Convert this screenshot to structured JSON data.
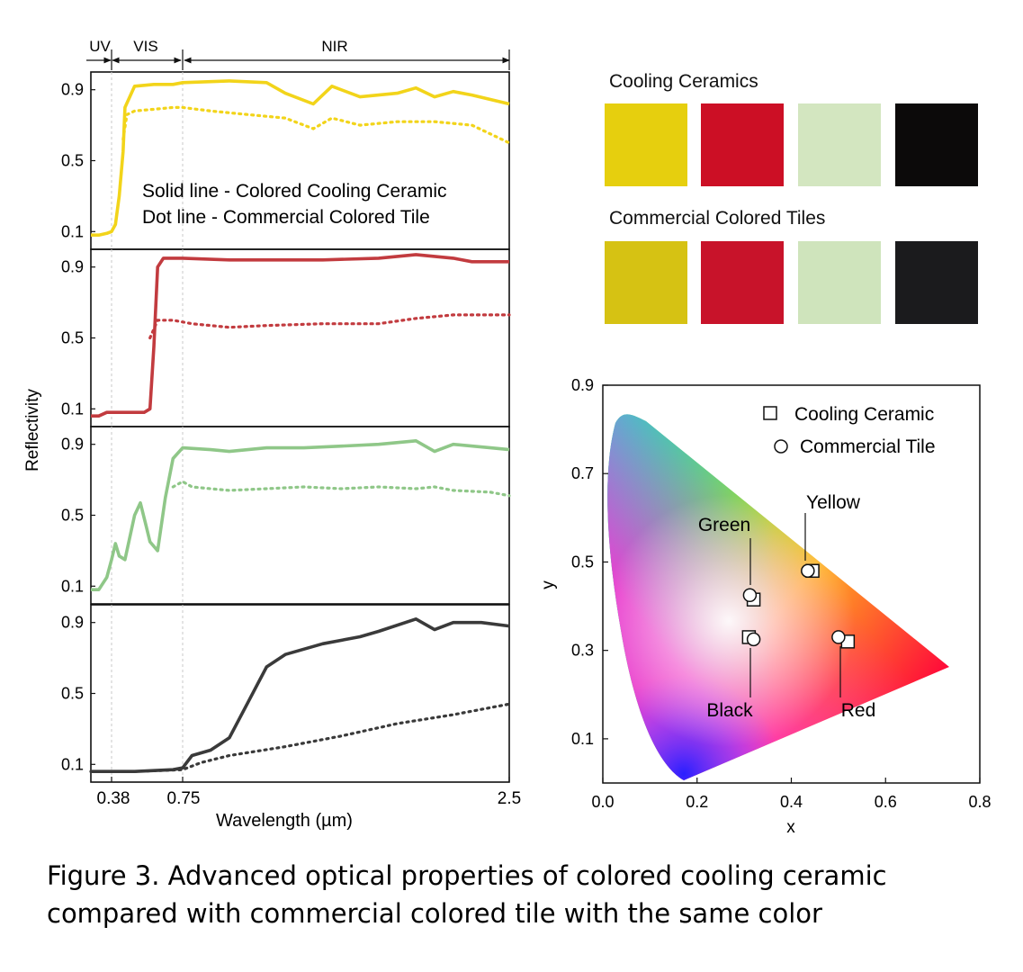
{
  "reflectance": {
    "region_labels": [
      "UV",
      "VIS",
      "NIR"
    ],
    "ylabel": "Reflectivity",
    "xlabel": "Wavelength (µm)",
    "xticks": [
      "0.38",
      "0.75",
      "2.5"
    ],
    "yticks": [
      "0.9",
      "0.5",
      "0.1"
    ],
    "legend": [
      "Solid line  - Colored Cooling Ceramic",
      "Dot line  - Commercial Colored Tile"
    ]
  },
  "swatches": {
    "cooling_title": "Cooling Ceramics",
    "commercial_title": "Commercial Colored Tiles",
    "cooling_colors": [
      "#e6cf0e",
      "#cc0f25",
      "#d3e6c0",
      "#0c0a0a"
    ],
    "commercial_colors": [
      "#d6c213",
      "#c8132a",
      "#cfe4bc",
      "#1b1b1d"
    ]
  },
  "chart_data": [
    {
      "type": "line",
      "panel": "yellow",
      "color": "#f2d41a",
      "xlim": [
        0.25,
        2.5
      ],
      "ylim": [
        0.0,
        1.0
      ],
      "series": [
        {
          "x": [
            0.25,
            0.3,
            0.35,
            0.38,
            0.4,
            0.42,
            0.44,
            0.45,
            0.5,
            0.6,
            0.7,
            0.75,
            1.0,
            1.2,
            1.3,
            1.45,
            1.55,
            1.7,
            1.9,
            2.0,
            2.1,
            2.2,
            2.3,
            2.5
          ],
          "y": [
            0.08,
            0.08,
            0.09,
            0.1,
            0.14,
            0.3,
            0.55,
            0.8,
            0.92,
            0.93,
            0.93,
            0.94,
            0.95,
            0.94,
            0.88,
            0.82,
            0.92,
            0.86,
            0.88,
            0.91,
            0.86,
            0.89,
            0.87,
            0.82
          ]
        },
        {
          "x": [
            0.44,
            0.46,
            0.5,
            0.6,
            0.7,
            0.75,
            0.9,
            1.1,
            1.3,
            1.45,
            1.55,
            1.7,
            1.9,
            2.1,
            2.3,
            2.5
          ],
          "y": [
            0.62,
            0.76,
            0.78,
            0.79,
            0.8,
            0.8,
            0.78,
            0.76,
            0.74,
            0.68,
            0.74,
            0.7,
            0.72,
            0.72,
            0.7,
            0.6
          ]
        }
      ]
    },
    {
      "type": "line",
      "panel": "red",
      "color": "#c23b3f",
      "xlim": [
        0.25,
        2.5
      ],
      "ylim": [
        0.0,
        1.0
      ],
      "series": [
        {
          "x": [
            0.25,
            0.3,
            0.35,
            0.4,
            0.5,
            0.55,
            0.58,
            0.6,
            0.62,
            0.65,
            0.7,
            0.75,
            1.0,
            1.5,
            1.8,
            2.0,
            2.2,
            2.3,
            2.5
          ],
          "y": [
            0.06,
            0.06,
            0.08,
            0.08,
            0.08,
            0.08,
            0.1,
            0.45,
            0.9,
            0.95,
            0.95,
            0.95,
            0.94,
            0.94,
            0.95,
            0.97,
            0.95,
            0.93,
            0.93
          ]
        },
        {
          "x": [
            0.58,
            0.62,
            0.7,
            0.8,
            1.0,
            1.2,
            1.5,
            1.8,
            2.0,
            2.2,
            2.5
          ],
          "y": [
            0.5,
            0.6,
            0.6,
            0.58,
            0.56,
            0.57,
            0.58,
            0.58,
            0.61,
            0.63,
            0.63
          ]
        }
      ]
    },
    {
      "type": "line",
      "panel": "green",
      "color": "#8fc788",
      "xlim": [
        0.25,
        2.5
      ],
      "ylim": [
        0.0,
        1.0
      ],
      "series": [
        {
          "x": [
            0.25,
            0.3,
            0.35,
            0.38,
            0.4,
            0.42,
            0.45,
            0.5,
            0.53,
            0.56,
            0.58,
            0.62,
            0.66,
            0.7,
            0.75,
            0.9,
            1.0,
            1.2,
            1.4,
            1.6,
            1.8,
            2.0,
            2.1,
            2.2,
            2.4,
            2.5
          ],
          "y": [
            0.08,
            0.08,
            0.15,
            0.25,
            0.34,
            0.27,
            0.25,
            0.5,
            0.57,
            0.44,
            0.35,
            0.3,
            0.6,
            0.82,
            0.88,
            0.87,
            0.86,
            0.88,
            0.88,
            0.89,
            0.9,
            0.92,
            0.86,
            0.9,
            0.88,
            0.87
          ]
        },
        {
          "x": [
            0.7,
            0.75,
            0.8,
            0.9,
            1.0,
            1.2,
            1.4,
            1.6,
            1.8,
            2.0,
            2.1,
            2.2,
            2.4,
            2.5
          ],
          "y": [
            0.66,
            0.69,
            0.66,
            0.65,
            0.64,
            0.65,
            0.66,
            0.65,
            0.66,
            0.65,
            0.66,
            0.64,
            0.63,
            0.61
          ]
        }
      ]
    },
    {
      "type": "line",
      "panel": "black",
      "color": "#3a3a3a",
      "xlim": [
        0.25,
        2.5
      ],
      "ylim": [
        0.0,
        1.0
      ],
      "series": [
        {
          "x": [
            0.25,
            0.5,
            0.7,
            0.75,
            0.8,
            0.9,
            1.0,
            1.1,
            1.2,
            1.3,
            1.5,
            1.7,
            1.8,
            2.0,
            2.1,
            2.2,
            2.35,
            2.5
          ],
          "y": [
            0.06,
            0.06,
            0.07,
            0.08,
            0.15,
            0.18,
            0.25,
            0.45,
            0.65,
            0.72,
            0.78,
            0.82,
            0.85,
            0.92,
            0.86,
            0.9,
            0.9,
            0.88
          ]
        },
        {
          "x": [
            0.25,
            0.5,
            0.75,
            0.85,
            1.0,
            1.3,
            1.6,
            1.9,
            2.2,
            2.5
          ],
          "y": [
            0.06,
            0.06,
            0.07,
            0.11,
            0.15,
            0.2,
            0.26,
            0.33,
            0.38,
            0.44
          ]
        }
      ]
    },
    {
      "type": "scatter",
      "panel": "cie",
      "xlabel": "x",
      "ylabel": "y",
      "xlim": [
        0.0,
        0.8
      ],
      "ylim": [
        0.0,
        0.9
      ],
      "xticks": [
        "0.0",
        "0.2",
        "0.4",
        "0.6",
        "0.8"
      ],
      "yticks": [
        "0.1",
        "0.3",
        "0.5",
        "0.7",
        "0.9"
      ],
      "legend": [
        "Cooling Ceramic",
        "Commercial Tile"
      ],
      "series": [
        {
          "name": "Cooling Ceramic",
          "marker": "square",
          "points": [
            {
              "x": 0.445,
              "y": 0.48
            },
            {
              "x": 0.32,
              "y": 0.415
            },
            {
              "x": 0.52,
              "y": 0.32
            },
            {
              "x": 0.31,
              "y": 0.33
            }
          ]
        },
        {
          "name": "Commercial Tile",
          "marker": "circle",
          "points": [
            {
              "x": 0.435,
              "y": 0.48
            },
            {
              "x": 0.312,
              "y": 0.425
            },
            {
              "x": 0.5,
              "y": 0.33
            },
            {
              "x": 0.32,
              "y": 0.325
            }
          ]
        }
      ],
      "annotations": [
        "Yellow",
        "Green",
        "Red",
        "Black"
      ]
    }
  ],
  "caption": {
    "line1": "Figure 3. Advanced optical properties of colored cooling ceramic",
    "line2": "compared with commercial colored tile with the same color"
  }
}
